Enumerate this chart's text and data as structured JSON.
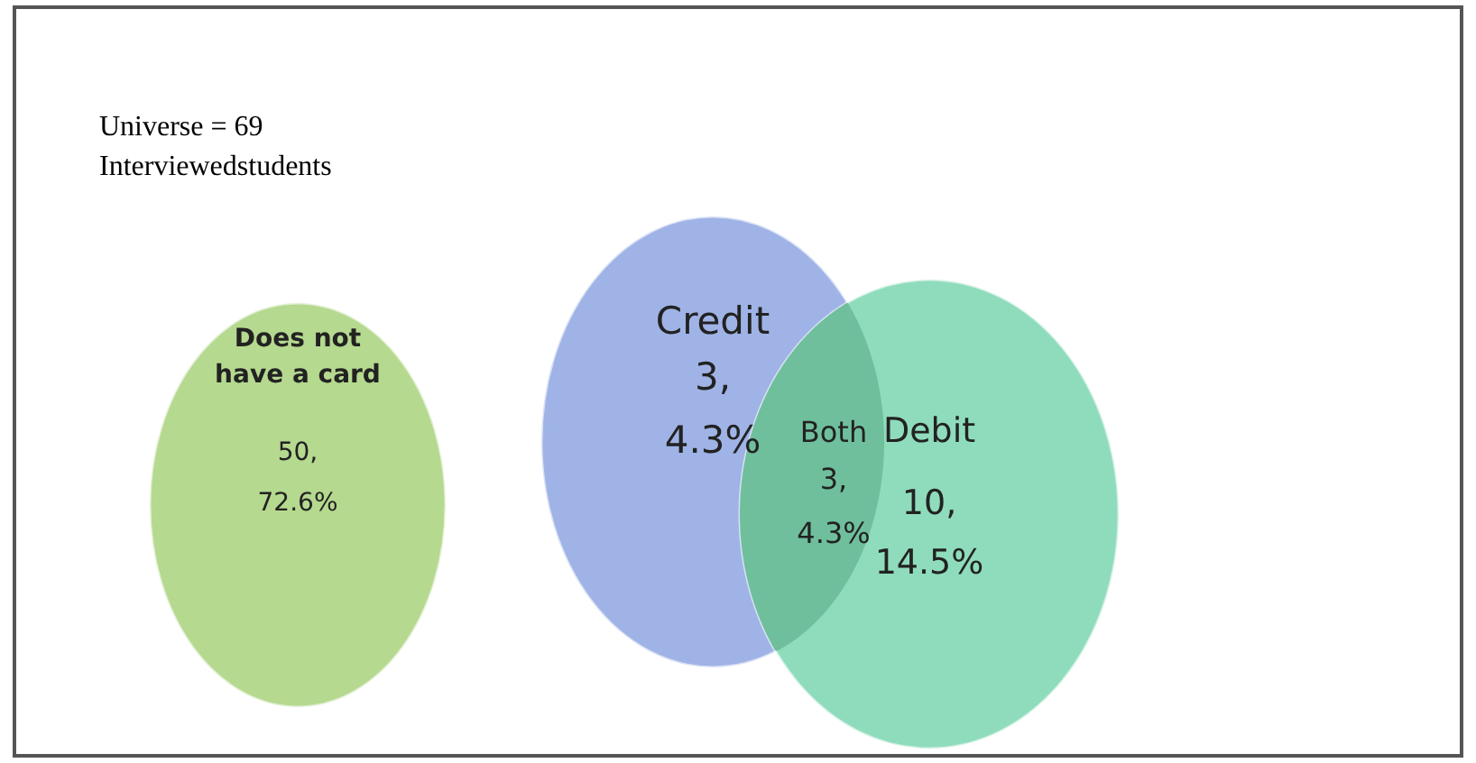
{
  "chart_data": {
    "type": "other",
    "title": "Universe = 69",
    "subtitle": "Interviewedstudents",
    "categories": [
      "Does not have a card",
      "Credit",
      "Both",
      "Debit"
    ],
    "values": [
      50,
      3,
      3,
      10
    ],
    "data_labels": true,
    "annotations": [
      ",\n72.6%",
      ",\n4.3%",
      ",\n4.3%",
      ",\n14.5%"
    ],
    "colors": [
      "#b5d98f",
      "#9fb3e6",
      "#6fbf9c",
      "#8fdcbc"
    ]
  }
}
